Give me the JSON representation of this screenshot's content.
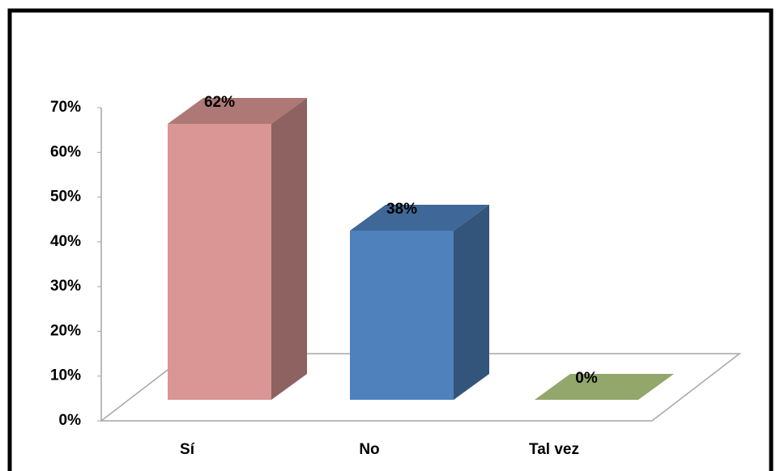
{
  "chart_data": {
    "type": "bar3d",
    "categories": [
      "Sí",
      "No",
      "Tal vez"
    ],
    "values": [
      62,
      38,
      0
    ],
    "value_labels": [
      "62%",
      "38%",
      "0%"
    ],
    "colors": [
      "#d99694",
      "#4f81bd",
      "#93a66b"
    ],
    "ylim": [
      0,
      70
    ],
    "yticks": [
      {
        "value": 0,
        "label": "0%"
      },
      {
        "value": 10,
        "label": "10%"
      },
      {
        "value": 20,
        "label": "20%"
      },
      {
        "value": 30,
        "label": "30%"
      },
      {
        "value": 40,
        "label": "40%"
      },
      {
        "value": 50,
        "label": "50%"
      },
      {
        "value": 60,
        "label": "60%"
      },
      {
        "value": 70,
        "label": "70%"
      }
    ]
  }
}
